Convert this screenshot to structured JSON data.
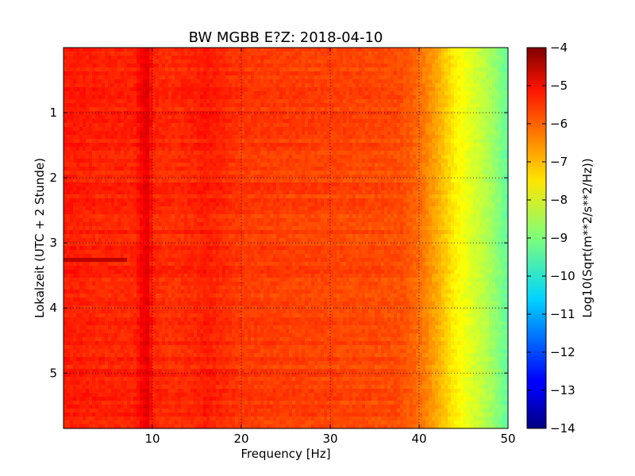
{
  "chart_data": {
    "type": "heatmap",
    "title": "BW MGBB E?Z: 2018-04-10",
    "xlabel": "Frequency [Hz]",
    "ylabel": "Lokalzeit (UTC + 2 Stunde)",
    "colorbar_label": "Log10(Sqrt(m**2/s**2/Hz))",
    "xlim": [
      0,
      50
    ],
    "ylim": [
      5.85,
      0
    ],
    "x_ticks": [
      10,
      20,
      30,
      40,
      50
    ],
    "x_tick_labels": [
      "10",
      "20",
      "30",
      "40",
      "50"
    ],
    "y_ticks": [
      1,
      2,
      3,
      4,
      5
    ],
    "y_tick_labels": [
      "1",
      "2",
      "3",
      "4",
      "5"
    ],
    "y_inverted": true,
    "grid": true,
    "colormap": "jet",
    "clim": [
      -14,
      -4
    ],
    "colorbar_ticks": [
      -4,
      -5,
      -6,
      -7,
      -8,
      -9,
      -10,
      -11,
      -12,
      -13,
      -14
    ],
    "colorbar_tick_labels": [
      "−4",
      "−5",
      "−6",
      "−7",
      "−8",
      "−9",
      "−10",
      "−11",
      "−12",
      "−13",
      "−14"
    ],
    "frequency_profile": {
      "frequency_hz": [
        0,
        5,
        8,
        9,
        9.5,
        10,
        12,
        15,
        16,
        20,
        30,
        38,
        40,
        42,
        44,
        46,
        48,
        50
      ],
      "log10_amplitude": [
        -5.5,
        -5.6,
        -5.6,
        -5.1,
        -5.0,
        -5.6,
        -5.7,
        -5.6,
        -5.5,
        -5.8,
        -5.9,
        -6.0,
        -6.3,
        -6.9,
        -7.6,
        -8.1,
        -8.6,
        -9.3
      ]
    },
    "events": [
      {
        "time_h": 3.25,
        "frequency_range_hz": [
          0,
          7
        ],
        "log10_amplitude": -4.6
      }
    ]
  }
}
